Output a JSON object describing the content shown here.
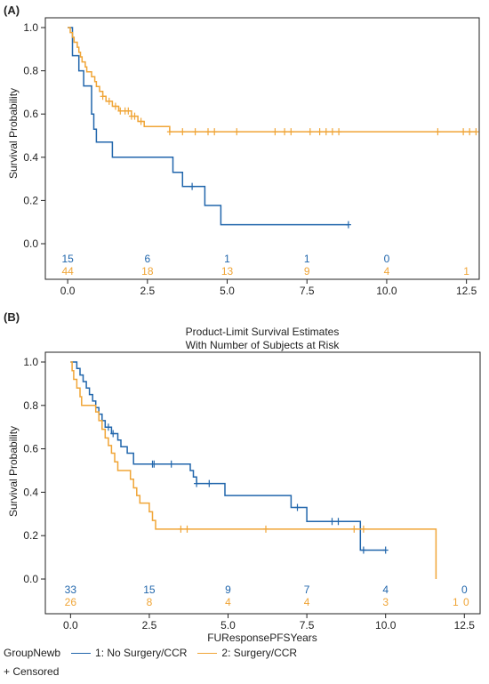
{
  "colors": {
    "group1": "#2166ac",
    "group2": "#f0a537",
    "axis": "#222222"
  },
  "chart_data": [
    {
      "panel_label": "(A)",
      "type": "line",
      "title": "",
      "subtitle": "",
      "xlabel": "",
      "ylabel": "Survival Probability",
      "xlim": [
        -0.7,
        12.9
      ],
      "ylim": [
        0,
        1.0
      ],
      "x_ticks": [
        0,
        2.5,
        5,
        7.5,
        10,
        12.5
      ],
      "x_tick_labels": [
        "0.0",
        "2.5",
        "5.0",
        "7.5",
        "10.0",
        "12.5"
      ],
      "y_ticks": [
        0,
        0.2,
        0.4,
        0.6,
        0.8,
        1.0
      ],
      "y_tick_labels": [
        "0.0",
        "0.2",
        "0.4",
        "0.6",
        "0.8",
        "1.0"
      ],
      "grid": false,
      "series": [
        {
          "steps": [
            [
              0,
              1.0
            ],
            [
              0.15,
              1.0
            ],
            [
              0.15,
              0.87
            ],
            [
              0.35,
              0.87
            ],
            [
              0.35,
              0.8
            ],
            [
              0.5,
              0.8
            ],
            [
              0.5,
              0.73
            ],
            [
              0.75,
              0.73
            ],
            [
              0.75,
              0.6
            ],
            [
              0.82,
              0.6
            ],
            [
              0.82,
              0.53
            ],
            [
              0.9,
              0.53
            ],
            [
              0.9,
              0.47
            ],
            [
              1.4,
              0.47
            ],
            [
              1.4,
              0.4
            ],
            [
              3.3,
              0.4
            ],
            [
              3.3,
              0.33
            ],
            [
              3.6,
              0.33
            ],
            [
              3.6,
              0.265
            ],
            [
              4.3,
              0.265
            ],
            [
              4.3,
              0.177
            ],
            [
              4.8,
              0.177
            ],
            [
              4.8,
              0.088
            ],
            [
              8.8,
              0.088
            ]
          ],
          "censor_x": [
            3.9,
            8.8
          ]
        },
        {
          "steps": [
            [
              0,
              1.0
            ],
            [
              0.08,
              0.977
            ],
            [
              0.15,
              0.955
            ],
            [
              0.2,
              0.932
            ],
            [
              0.3,
              0.909
            ],
            [
              0.35,
              0.886
            ],
            [
              0.4,
              0.864
            ],
            [
              0.45,
              0.841
            ],
            [
              0.55,
              0.818
            ],
            [
              0.6,
              0.795
            ],
            [
              0.75,
              0.773
            ],
            [
              0.85,
              0.75
            ],
            [
              0.9,
              0.727
            ],
            [
              1.0,
              0.705
            ],
            [
              1.1,
              0.682
            ],
            [
              1.2,
              0.659
            ],
            [
              1.4,
              0.636
            ],
            [
              1.6,
              0.614
            ],
            [
              2.0,
              0.59
            ],
            [
              2.2,
              0.566
            ],
            [
              2.4,
              0.542
            ],
            [
              3.2,
              0.542
            ],
            [
              3.2,
              0.518
            ],
            [
              12.8,
              0.518
            ]
          ],
          "censor_x": [
            1.1,
            1.3,
            1.5,
            1.65,
            1.8,
            1.9,
            2.0,
            2.1,
            2.3,
            3.2,
            3.6,
            4.0,
            4.4,
            4.6,
            5.3,
            6.5,
            6.8,
            7.0,
            7.6,
            7.9,
            8.1,
            8.3,
            8.5,
            11.6,
            12.4,
            12.6,
            12.8
          ]
        }
      ],
      "at_risk_x": [
        0,
        2.5,
        5,
        7.5,
        10,
        12.5
      ],
      "at_risk": [
        [
          "15",
          "6",
          "1",
          "1",
          "0",
          ""
        ],
        [
          "44",
          "18",
          "13",
          "9",
          "4",
          "1"
        ]
      ]
    },
    {
      "panel_label": "(B)",
      "type": "line",
      "title": "Product-Limit Survival Estimates",
      "subtitle": "With Number of Subjects at Risk",
      "xlabel": "FUResponsePFSYears",
      "ylabel": "Survival Probability",
      "xlim": [
        -0.8,
        13.0
      ],
      "ylim": [
        0,
        1.0
      ],
      "x_ticks": [
        0,
        2.5,
        5,
        7.5,
        10,
        12.5
      ],
      "x_tick_labels": [
        "0.0",
        "2.5",
        "5.0",
        "7.5",
        "10.0",
        "12.5"
      ],
      "y_ticks": [
        0,
        0.2,
        0.4,
        0.6,
        0.8,
        1.0
      ],
      "y_tick_labels": [
        "0.0",
        "0.2",
        "0.4",
        "0.6",
        "0.8",
        "1.0"
      ],
      "grid": false,
      "series": [
        {
          "name": "1: No Surgery/CCR",
          "steps": [
            [
              0,
              1.0
            ],
            [
              0.2,
              1.0
            ],
            [
              0.2,
              0.97
            ],
            [
              0.3,
              0.94
            ],
            [
              0.4,
              0.91
            ],
            [
              0.5,
              0.88
            ],
            [
              0.6,
              0.85
            ],
            [
              0.7,
              0.82
            ],
            [
              0.8,
              0.79
            ],
            [
              0.9,
              0.76
            ],
            [
              1.0,
              0.73
            ],
            [
              1.1,
              0.7
            ],
            [
              1.3,
              0.67
            ],
            [
              1.5,
              0.64
            ],
            [
              1.6,
              0.61
            ],
            [
              1.8,
              0.58
            ],
            [
              2.0,
              0.555
            ],
            [
              2.0,
              0.53
            ],
            [
              3.8,
              0.53
            ],
            [
              3.8,
              0.5
            ],
            [
              3.9,
              0.47
            ],
            [
              4.0,
              0.44
            ],
            [
              4.9,
              0.44
            ],
            [
              4.9,
              0.385
            ],
            [
              7.0,
              0.385
            ],
            [
              7.0,
              0.33
            ],
            [
              7.5,
              0.33
            ],
            [
              7.5,
              0.265
            ],
            [
              9.2,
              0.265
            ],
            [
              9.2,
              0.133
            ],
            [
              10.0,
              0.133
            ]
          ],
          "censor_x": [
            1.2,
            1.35,
            2.6,
            2.65,
            3.2,
            4.0,
            4.4,
            7.2,
            8.3,
            8.5,
            9.3,
            10.0
          ]
        },
        {
          "name": "2: Surgery/CCR",
          "steps": [
            [
              0,
              1.0
            ],
            [
              0.05,
              0.96
            ],
            [
              0.1,
              0.92
            ],
            [
              0.2,
              0.88
            ],
            [
              0.3,
              0.84
            ],
            [
              0.35,
              0.8
            ],
            [
              0.8,
              0.8
            ],
            [
              0.8,
              0.77
            ],
            [
              0.9,
              0.73
            ],
            [
              1.0,
              0.69
            ],
            [
              1.1,
              0.65
            ],
            [
              1.2,
              0.615
            ],
            [
              1.3,
              0.58
            ],
            [
              1.4,
              0.54
            ],
            [
              1.5,
              0.5
            ],
            [
              1.9,
              0.5
            ],
            [
              1.9,
              0.46
            ],
            [
              2.0,
              0.42
            ],
            [
              2.1,
              0.385
            ],
            [
              2.2,
              0.35
            ],
            [
              2.5,
              0.35
            ],
            [
              2.5,
              0.31
            ],
            [
              2.6,
              0.27
            ],
            [
              2.7,
              0.23
            ],
            [
              11.6,
              0.23
            ],
            [
              11.6,
              0.0
            ]
          ],
          "censor_x": [
            3.5,
            3.7,
            6.2,
            9.0,
            9.3
          ]
        }
      ],
      "at_risk_x": [
        0,
        2.5,
        5,
        7.5,
        10,
        12.5
      ],
      "at_risk": [
        [
          "33",
          "15",
          "9",
          "7",
          "4",
          "0"
        ],
        [
          "26",
          "8",
          "4",
          "4",
          "3",
          "1",
          "0"
        ]
      ],
      "at_risk_x2": [
        0,
        2.5,
        5,
        7.5,
        10,
        12.5,
        12.5
      ]
    }
  ],
  "legend": {
    "group_title": "GroupNewb",
    "entries": [
      "1: No Surgery/CCR",
      "2: Surgery/CCR"
    ],
    "censored_label": "+ Censored"
  }
}
